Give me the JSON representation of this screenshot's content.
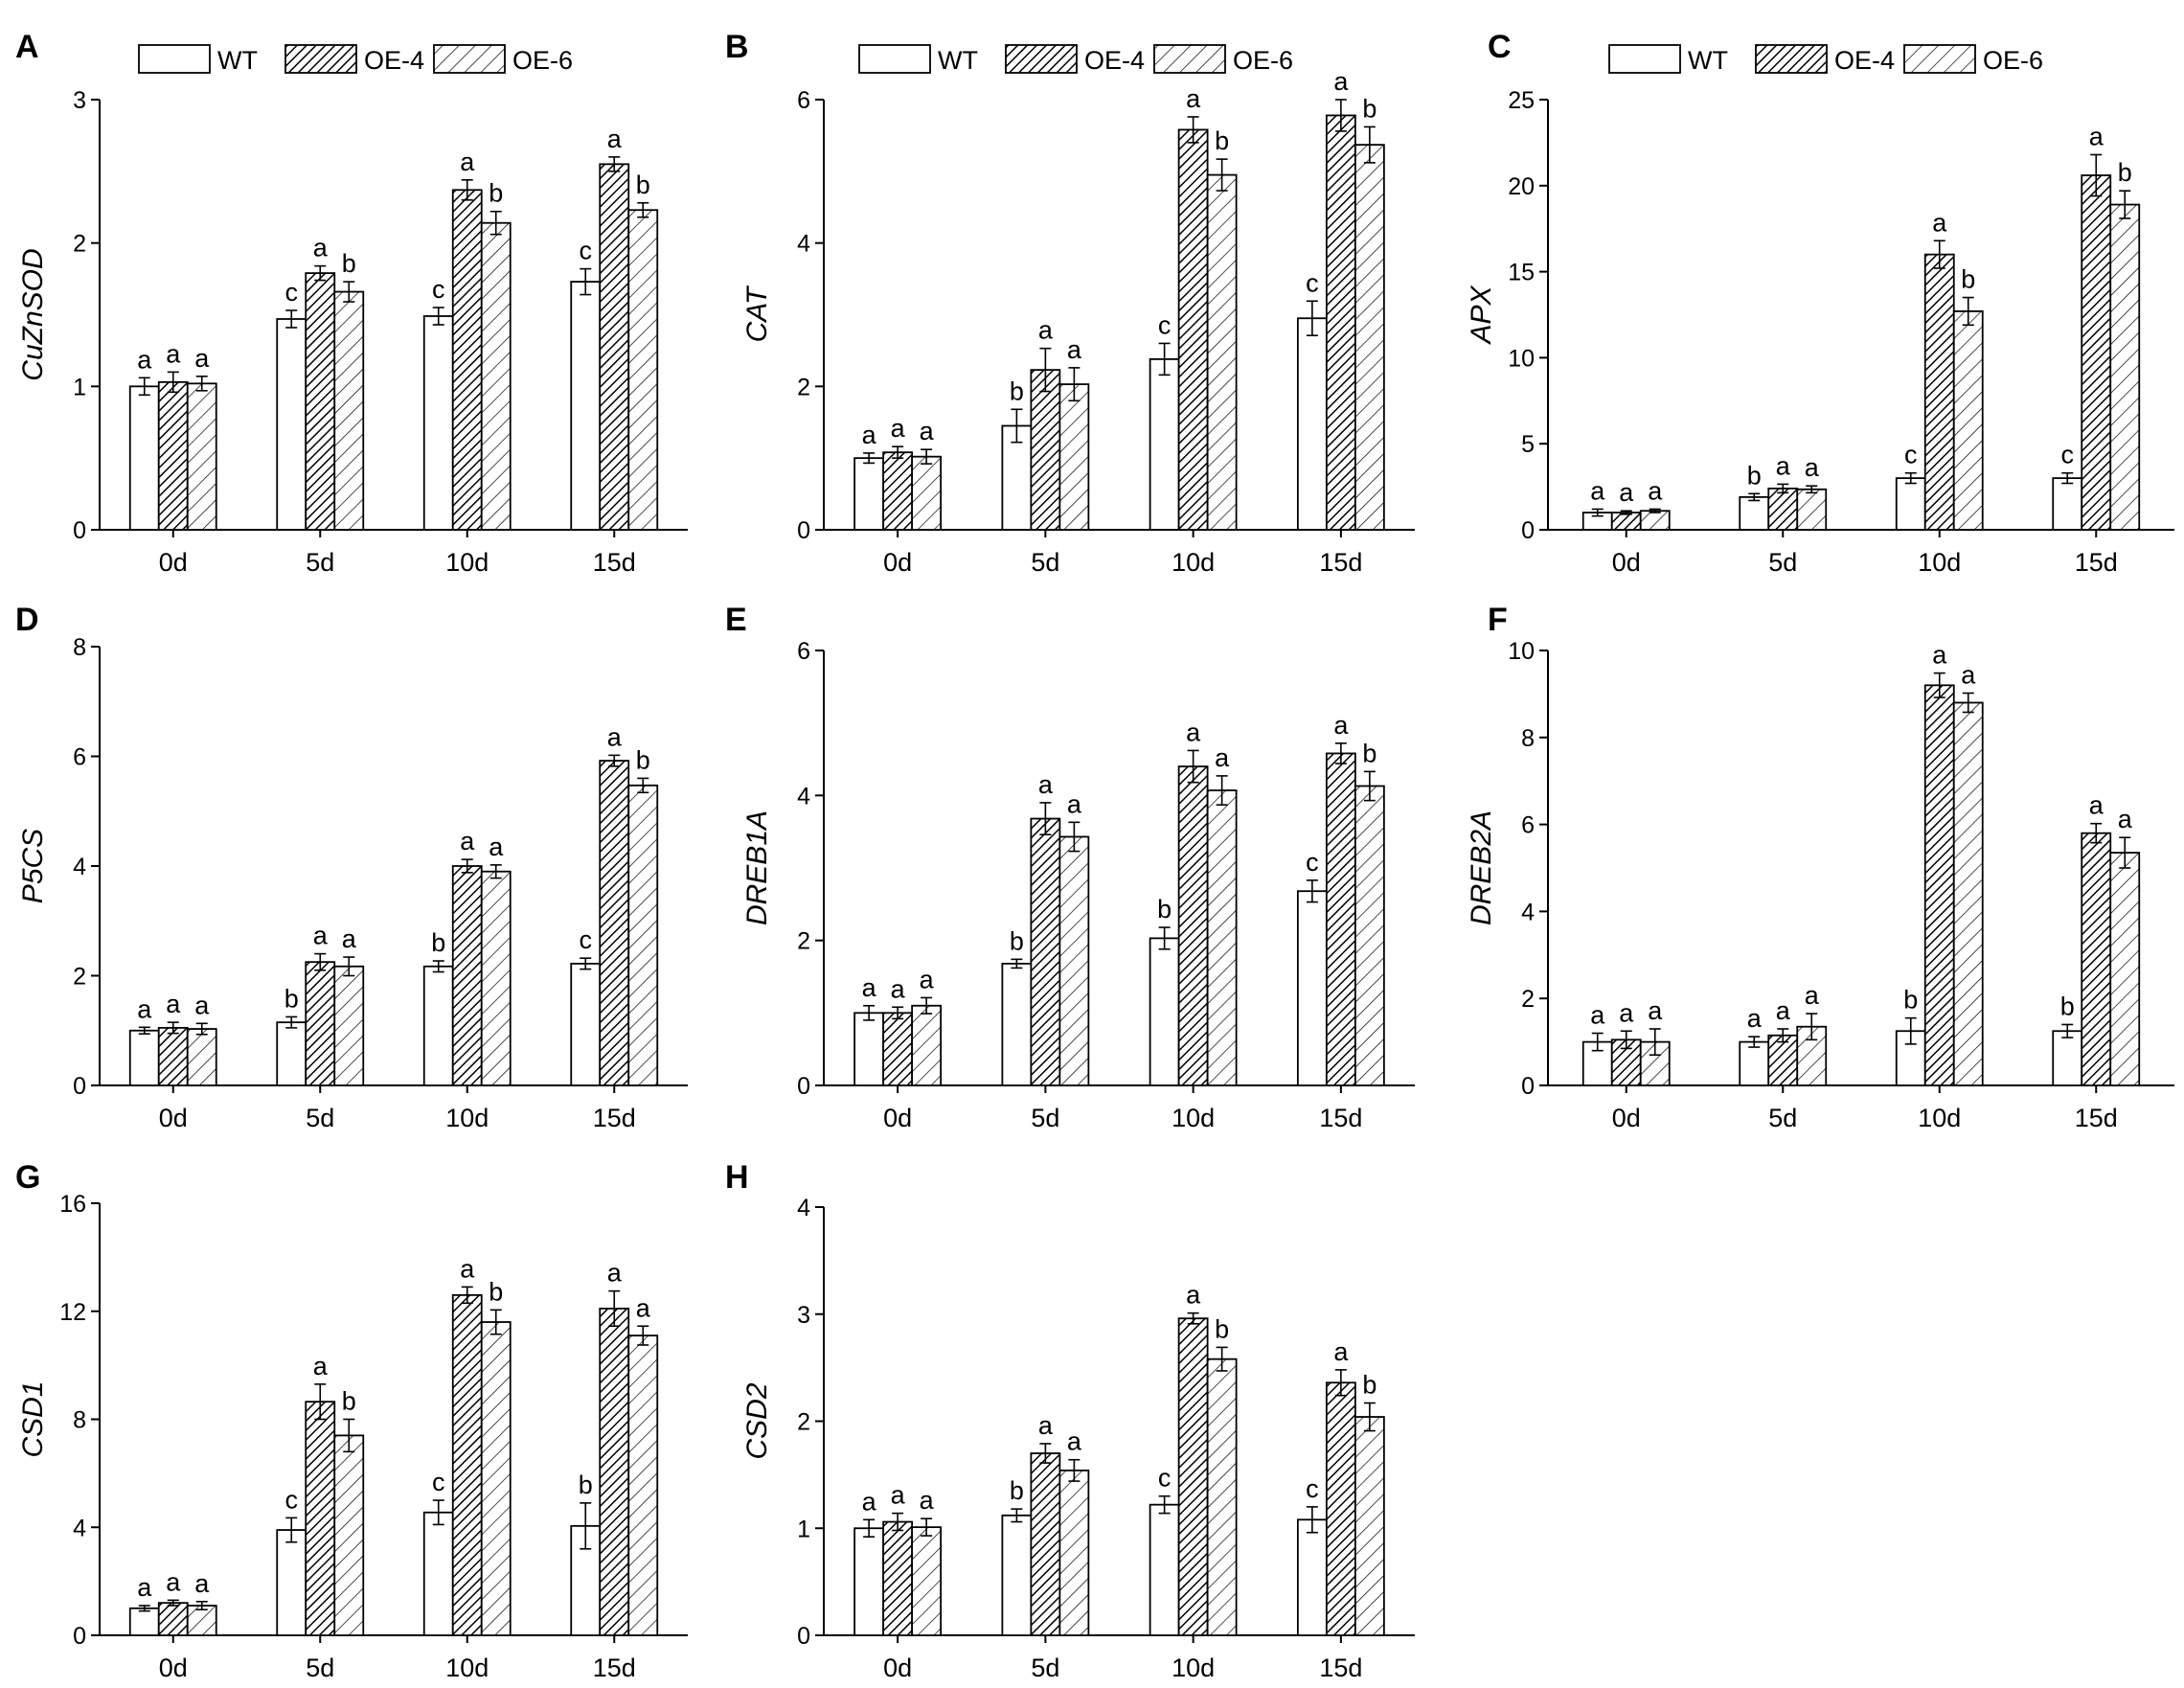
{
  "figure": {
    "categories": [
      "0d",
      "5d",
      "10d",
      "15d"
    ],
    "legend": [
      "WT",
      "OE-4",
      "OE-6"
    ]
  },
  "chart_data": [
    {
      "type": "bar",
      "panel": "A",
      "ylabel": "CuZnSOD",
      "ylim": [
        0,
        3
      ],
      "ticks": [
        0,
        1,
        2,
        3
      ],
      "legend": "top-left",
      "categories": [
        "0d",
        "5d",
        "10d",
        "15d"
      ],
      "series": [
        {
          "name": "WT",
          "values": [
            1.0,
            1.47,
            1.49,
            1.73
          ],
          "errors": [
            0.06,
            0.06,
            0.06,
            0.09
          ],
          "letters": [
            "a",
            "c",
            "c",
            "c"
          ]
        },
        {
          "name": "OE-4",
          "values": [
            1.03,
            1.79,
            2.37,
            2.55
          ],
          "errors": [
            0.07,
            0.05,
            0.07,
            0.05
          ],
          "letters": [
            "a",
            "a",
            "a",
            "a"
          ]
        },
        {
          "name": "OE-6",
          "values": [
            1.02,
            1.66,
            2.14,
            2.23
          ],
          "errors": [
            0.05,
            0.07,
            0.08,
            0.05
          ],
          "letters": [
            "a",
            "b",
            "b",
            "b"
          ]
        }
      ]
    },
    {
      "type": "bar",
      "panel": "B",
      "ylabel": "CAT",
      "ylim": [
        0,
        6
      ],
      "ticks": [
        0,
        2,
        4,
        6
      ],
      "legend": "top-left",
      "categories": [
        "0d",
        "5d",
        "10d",
        "15d"
      ],
      "series": [
        {
          "name": "WT",
          "values": [
            1.0,
            1.45,
            2.38,
            2.95
          ],
          "errors": [
            0.07,
            0.23,
            0.22,
            0.24
          ],
          "letters": [
            "a",
            "b",
            "c",
            "c"
          ]
        },
        {
          "name": "OE-4",
          "values": [
            1.08,
            2.23,
            5.58,
            5.78
          ],
          "errors": [
            0.08,
            0.3,
            0.18,
            0.22
          ],
          "letters": [
            "a",
            "a",
            "a",
            "a"
          ]
        },
        {
          "name": "OE-6",
          "values": [
            1.02,
            2.03,
            4.95,
            5.37
          ],
          "errors": [
            0.1,
            0.23,
            0.22,
            0.25
          ],
          "letters": [
            "a",
            "a",
            "b",
            "b"
          ]
        }
      ]
    },
    {
      "type": "bar",
      "panel": "C",
      "ylabel": "APX",
      "ylim": [
        0,
        25
      ],
      "ticks": [
        0,
        5,
        10,
        15,
        20,
        25
      ],
      "legend": "top-left",
      "categories": [
        "0d",
        "5d",
        "10d",
        "15d"
      ],
      "series": [
        {
          "name": "WT",
          "values": [
            1.0,
            1.9,
            3.0,
            3.0
          ],
          "errors": [
            0.2,
            0.2,
            0.3,
            0.3
          ],
          "letters": [
            "a",
            "b",
            "c",
            "c"
          ]
        },
        {
          "name": "OE-4",
          "values": [
            1.0,
            2.4,
            16.0,
            20.6
          ],
          "errors": [
            0.1,
            0.25,
            0.8,
            1.2
          ],
          "letters": [
            "a",
            "a",
            "a",
            "a"
          ]
        },
        {
          "name": "OE-6",
          "values": [
            1.1,
            2.35,
            12.7,
            18.9
          ],
          "errors": [
            0.1,
            0.2,
            0.8,
            0.8
          ],
          "letters": [
            "a",
            "a",
            "b",
            "b"
          ]
        }
      ]
    },
    {
      "type": "bar",
      "panel": "D",
      "ylabel": "P5CS",
      "ylim": [
        0,
        8
      ],
      "ticks": [
        0,
        2,
        4,
        6,
        8
      ],
      "legend": "none",
      "categories": [
        "0d",
        "5d",
        "10d",
        "15d"
      ],
      "series": [
        {
          "name": "WT",
          "values": [
            1.0,
            1.15,
            2.17,
            2.22
          ],
          "errors": [
            0.06,
            0.1,
            0.1,
            0.1
          ],
          "letters": [
            "a",
            "b",
            "b",
            "c"
          ]
        },
        {
          "name": "OE-4",
          "values": [
            1.05,
            2.25,
            4.0,
            5.92
          ],
          "errors": [
            0.1,
            0.15,
            0.12,
            0.1
          ],
          "letters": [
            "a",
            "a",
            "a",
            "a"
          ]
        },
        {
          "name": "OE-6",
          "values": [
            1.03,
            2.17,
            3.9,
            5.47
          ],
          "errors": [
            0.1,
            0.17,
            0.12,
            0.13
          ],
          "letters": [
            "a",
            "a",
            "a",
            "b"
          ]
        }
      ]
    },
    {
      "type": "bar",
      "panel": "E",
      "ylabel": "DREB1A",
      "ylim": [
        0,
        6
      ],
      "ticks": [
        0,
        2,
        4,
        6
      ],
      "legend": "none",
      "categories": [
        "0d",
        "5d",
        "10d",
        "15d"
      ],
      "series": [
        {
          "name": "WT",
          "values": [
            1.0,
            1.68,
            2.03,
            2.68
          ],
          "errors": [
            0.1,
            0.06,
            0.15,
            0.15
          ],
          "letters": [
            "a",
            "b",
            "b",
            "c"
          ]
        },
        {
          "name": "OE-4",
          "values": [
            1.0,
            3.68,
            4.4,
            4.58
          ],
          "errors": [
            0.08,
            0.22,
            0.22,
            0.14
          ],
          "letters": [
            "a",
            "a",
            "a",
            "a"
          ]
        },
        {
          "name": "OE-6",
          "values": [
            1.1,
            3.43,
            4.07,
            4.13
          ],
          "errors": [
            0.11,
            0.2,
            0.2,
            0.2
          ],
          "letters": [
            "a",
            "a",
            "a",
            "b"
          ]
        }
      ]
    },
    {
      "type": "bar",
      "panel": "F",
      "ylabel": "DREB2A",
      "ylim": [
        0,
        10
      ],
      "ticks": [
        0,
        2,
        4,
        6,
        8,
        10
      ],
      "legend": "none",
      "categories": [
        "0d",
        "5d",
        "10d",
        "15d"
      ],
      "series": [
        {
          "name": "WT",
          "values": [
            1.0,
            1.0,
            1.25,
            1.25
          ],
          "errors": [
            0.2,
            0.12,
            0.3,
            0.15
          ],
          "letters": [
            "a",
            "a",
            "b",
            "b"
          ]
        },
        {
          "name": "OE-4",
          "values": [
            1.05,
            1.15,
            9.2,
            5.8
          ],
          "errors": [
            0.2,
            0.15,
            0.28,
            0.22
          ],
          "letters": [
            "a",
            "a",
            "a",
            "a"
          ]
        },
        {
          "name": "OE-6",
          "values": [
            1.0,
            1.35,
            8.8,
            5.35
          ],
          "errors": [
            0.3,
            0.3,
            0.22,
            0.35
          ],
          "letters": [
            "a",
            "a",
            "a",
            "a"
          ]
        }
      ]
    },
    {
      "type": "bar",
      "panel": "G",
      "ylabel": "CSD1",
      "ylim": [
        0,
        16
      ],
      "ticks": [
        0,
        4,
        8,
        12,
        16
      ],
      "legend": "none",
      "categories": [
        "0d",
        "5d",
        "10d",
        "15d"
      ],
      "series": [
        {
          "name": "WT",
          "values": [
            1.0,
            3.9,
            4.55,
            4.05
          ],
          "errors": [
            0.1,
            0.45,
            0.45,
            0.85
          ],
          "letters": [
            "a",
            "c",
            "c",
            "b"
          ]
        },
        {
          "name": "OE-4",
          "values": [
            1.2,
            8.65,
            12.6,
            12.1
          ],
          "errors": [
            0.1,
            0.65,
            0.3,
            0.65
          ],
          "letters": [
            "a",
            "a",
            "a",
            "a"
          ]
        },
        {
          "name": "OE-6",
          "values": [
            1.1,
            7.4,
            11.6,
            11.1
          ],
          "errors": [
            0.15,
            0.6,
            0.45,
            0.35
          ],
          "letters": [
            "a",
            "b",
            "b",
            "a"
          ]
        }
      ]
    },
    {
      "type": "bar",
      "panel": "H",
      "ylabel": "CSD2",
      "ylim": [
        0,
        4
      ],
      "ticks": [
        0,
        1,
        2,
        3,
        4
      ],
      "legend": "none",
      "categories": [
        "0d",
        "5d",
        "10d",
        "15d"
      ],
      "series": [
        {
          "name": "WT",
          "values": [
            1.0,
            1.12,
            1.22,
            1.08
          ],
          "errors": [
            0.08,
            0.06,
            0.08,
            0.12
          ],
          "letters": [
            "a",
            "b",
            "c",
            "c"
          ]
        },
        {
          "name": "OE-4",
          "values": [
            1.06,
            1.7,
            2.96,
            2.36
          ],
          "errors": [
            0.08,
            0.09,
            0.05,
            0.12
          ],
          "letters": [
            "a",
            "a",
            "a",
            "a"
          ]
        },
        {
          "name": "OE-6",
          "values": [
            1.01,
            1.54,
            2.58,
            2.04
          ],
          "errors": [
            0.08,
            0.1,
            0.11,
            0.13
          ],
          "letters": [
            "a",
            "a",
            "b",
            "b"
          ]
        }
      ]
    }
  ]
}
